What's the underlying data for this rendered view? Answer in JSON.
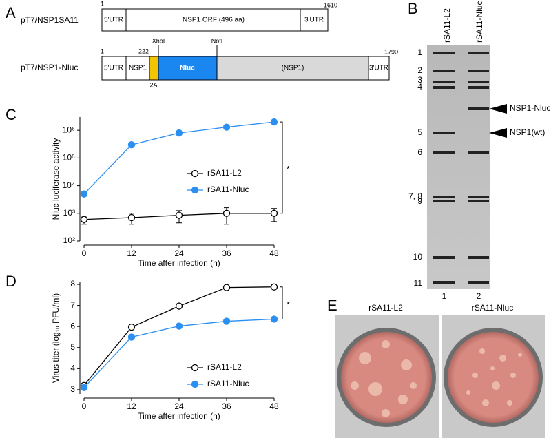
{
  "panels": {
    "a": "A",
    "b": "B",
    "c": "C",
    "d": "D",
    "e": "E"
  },
  "construct1": {
    "name": "pT7/NSP1SA11",
    "start": 1,
    "end": 1610,
    "segments": [
      "5'UTR",
      "NSP1 ORF (496 aa)",
      "3'UTR"
    ]
  },
  "construct2": {
    "name": "pT7/NSP1-Nluc",
    "start": 1,
    "site_pos": 222,
    "end": 1790,
    "sites": [
      "XhoI",
      "NotI"
    ],
    "segments": [
      "5'UTR",
      "NSP1",
      "Nluc",
      "(NSP1)",
      "3'UTR"
    ],
    "label_2a": "2A"
  },
  "gel": {
    "lanes": [
      "rSA11-L2",
      "rSA11-Nluc"
    ],
    "lane_numbers": [
      "1",
      "2"
    ],
    "bands": [
      "1",
      "2",
      "3",
      "4",
      "5",
      "6",
      "7, 8",
      "9",
      "10",
      "11"
    ],
    "arrows": [
      "NSP1-Nluc",
      "NSP1(wt)"
    ]
  },
  "plates": {
    "labels": [
      "rSA11-L2",
      "rSA11-Nluc"
    ]
  },
  "chart_data": [
    {
      "type": "line",
      "x_label": "Time after infection (h)",
      "y_label": "Nluc luciferase activity",
      "log_y": true,
      "x": [
        0,
        12,
        24,
        36,
        48
      ],
      "xlim": [
        0,
        48
      ],
      "xticks": [
        0,
        12,
        24,
        36,
        48
      ],
      "ylim": [
        100,
        3000000
      ],
      "yticks": [
        {
          "value": 100,
          "label": "10²"
        },
        {
          "value": 1000,
          "label": "10³"
        },
        {
          "value": 10000,
          "label": "10⁴"
        },
        {
          "value": 100000,
          "label": "10⁵"
        },
        {
          "value": 1000000,
          "label": "10⁶"
        }
      ],
      "legend": "center-right",
      "annotation": "*",
      "series": [
        {
          "name": "rSA11-L2",
          "color": "#000000",
          "marker": "open",
          "values": [
            600,
            700,
            850,
            1000,
            1000
          ],
          "errors": [
            200,
            300,
            400,
            600,
            500
          ]
        },
        {
          "name": "rSA11-Nluc",
          "color": "#2b8ff0",
          "marker": "filled",
          "values": [
            5000,
            300000,
            800000,
            1300000,
            2000000
          ]
        }
      ]
    },
    {
      "type": "line",
      "x_label": "Time after infection (h)",
      "y_label": "Virus titer (log₁₀ PFU/ml)",
      "log_y": false,
      "x": [
        0,
        12,
        24,
        36,
        48
      ],
      "xlim": [
        0,
        48
      ],
      "xticks": [
        0,
        12,
        24,
        36,
        48
      ],
      "ylim": [
        2.8,
        8.1
      ],
      "yticks": [
        3,
        4,
        5,
        6,
        7,
        8
      ],
      "legend": "lower-right",
      "annotation": "*",
      "series": [
        {
          "name": "rSA11-L2",
          "color": "#000000",
          "marker": "open",
          "values": [
            3.2,
            5.97,
            6.97,
            7.85,
            7.88
          ],
          "errors": [
            0.05,
            0.05,
            0.08,
            0.05,
            0.08
          ]
        },
        {
          "name": "rSA11-Nluc",
          "color": "#2b8ff0",
          "marker": "filled",
          "values": [
            3.1,
            5.5,
            6.02,
            6.25,
            6.35
          ]
        }
      ]
    }
  ]
}
